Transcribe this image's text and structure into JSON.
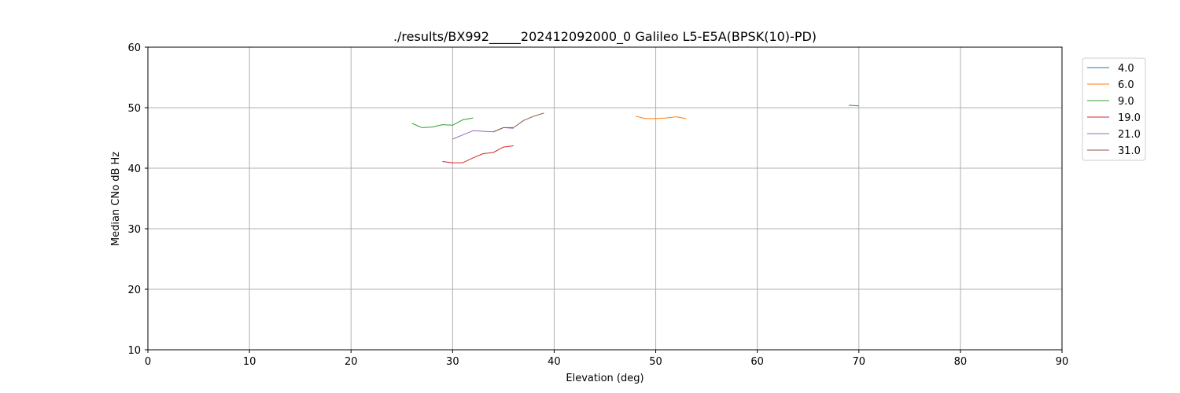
{
  "chart_data": {
    "type": "line",
    "title": "./results/BX992_____202412092000_0 Galileo L5-E5A(BPSK(10)-PD)",
    "xlabel": "Elevation (deg)",
    "ylabel": "Median CNo dB Hz",
    "xlim": [
      0,
      90
    ],
    "ylim": [
      10,
      60
    ],
    "xticks": [
      "0",
      "10",
      "20",
      "30",
      "40",
      "50",
      "60",
      "70",
      "80",
      "90"
    ],
    "yticks": [
      "10",
      "20",
      "30",
      "40",
      "50",
      "60"
    ],
    "grid": true,
    "legend_position": "upper-right outside",
    "series": [
      {
        "name": "4.0",
        "color": "#1f77b4",
        "points": [
          [
            69,
            50.4
          ],
          [
            70,
            50.3
          ]
        ]
      },
      {
        "name": "6.0",
        "color": "#ff7f0e",
        "points": [
          [
            48,
            48.6
          ],
          [
            49,
            48.2
          ],
          [
            50,
            48.2
          ],
          [
            51,
            48.3
          ],
          [
            52,
            48.5
          ],
          [
            53,
            48.2
          ]
        ]
      },
      {
        "name": "9.0",
        "color": "#2ca02c",
        "points": [
          [
            26,
            47.4
          ],
          [
            27,
            46.7
          ],
          [
            28,
            46.8
          ],
          [
            29,
            47.2
          ],
          [
            30,
            47.1
          ],
          [
            31,
            48.0
          ],
          [
            32,
            48.3
          ]
        ]
      },
      {
        "name": "19.0",
        "color": "#d62728",
        "points": [
          [
            29,
            41.1
          ],
          [
            30,
            40.9
          ],
          [
            31,
            40.9
          ],
          [
            32,
            41.7
          ],
          [
            33,
            42.4
          ],
          [
            34,
            42.6
          ],
          [
            35,
            43.5
          ],
          [
            36,
            43.7
          ]
        ]
      },
      {
        "name": "21.0",
        "color": "#9467bd",
        "points": [
          [
            30,
            44.8
          ],
          [
            31,
            45.5
          ],
          [
            32,
            46.2
          ],
          [
            33,
            46.1
          ],
          [
            34,
            46.0
          ],
          [
            35,
            46.7
          ],
          [
            36,
            46.6
          ]
        ]
      },
      {
        "name": "31.0",
        "color": "#8c564b",
        "points": [
          [
            34,
            46.0
          ],
          [
            35,
            46.7
          ],
          [
            36,
            46.7
          ],
          [
            37,
            47.9
          ],
          [
            38,
            48.6
          ],
          [
            39,
            49.1
          ]
        ]
      }
    ]
  }
}
